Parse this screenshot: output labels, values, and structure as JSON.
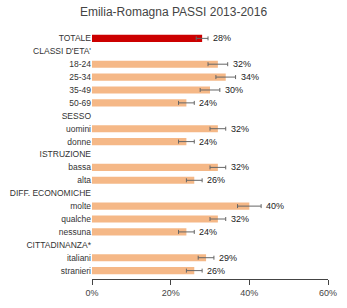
{
  "chart_data": {
    "type": "bar",
    "orientation": "horizontal",
    "title": "Emilia-Romagna PASSI 2013-2016",
    "categories": [
      "TOTALE",
      "CLASSI D'ETA'",
      "18-24",
      "25-34",
      "35-49",
      "50-69",
      "SESSO",
      "uomini",
      "donne",
      "ISTRUZIONE",
      "bassa",
      "alta",
      "DIFF. ECONOMICHE",
      "molte",
      "qualche",
      "nessuna",
      "CITTADINANZA*",
      "italiani",
      "stranieri"
    ],
    "values": [
      28,
      null,
      32,
      34,
      30,
      24,
      null,
      32,
      24,
      null,
      32,
      26,
      null,
      40,
      32,
      24,
      null,
      29,
      26
    ],
    "value_labels": [
      "28%",
      null,
      "32%",
      "34%",
      "30%",
      "24%",
      null,
      "32%",
      "24%",
      null,
      "32%",
      "26%",
      null,
      "40%",
      "32%",
      "24%",
      null,
      "29%",
      "26%"
    ],
    "errors": [
      1.5,
      null,
      2.5,
      2.5,
      2.5,
      2.0,
      null,
      2.0,
      2.0,
      null,
      2.0,
      2.0,
      null,
      3.0,
      2.0,
      2.0,
      null,
      2.0,
      2.0
    ],
    "colors": [
      "#cc0000",
      null,
      "#f5b887",
      "#f5b887",
      "#f5b887",
      "#f5b887",
      null,
      "#f5b887",
      "#f5b887",
      null,
      "#f5b887",
      "#f5b887",
      null,
      "#f5b887",
      "#f5b887",
      "#f5b887",
      null,
      "#f5b887",
      "#f5b887"
    ],
    "data_labels": true,
    "xlim": [
      0,
      60
    ],
    "xticks": [
      {
        "value": 0,
        "label": "0%"
      },
      {
        "value": 20,
        "label": "20%"
      },
      {
        "value": 40,
        "label": "40%"
      },
      {
        "value": 60,
        "label": "60%"
      }
    ],
    "grid": false
  }
}
